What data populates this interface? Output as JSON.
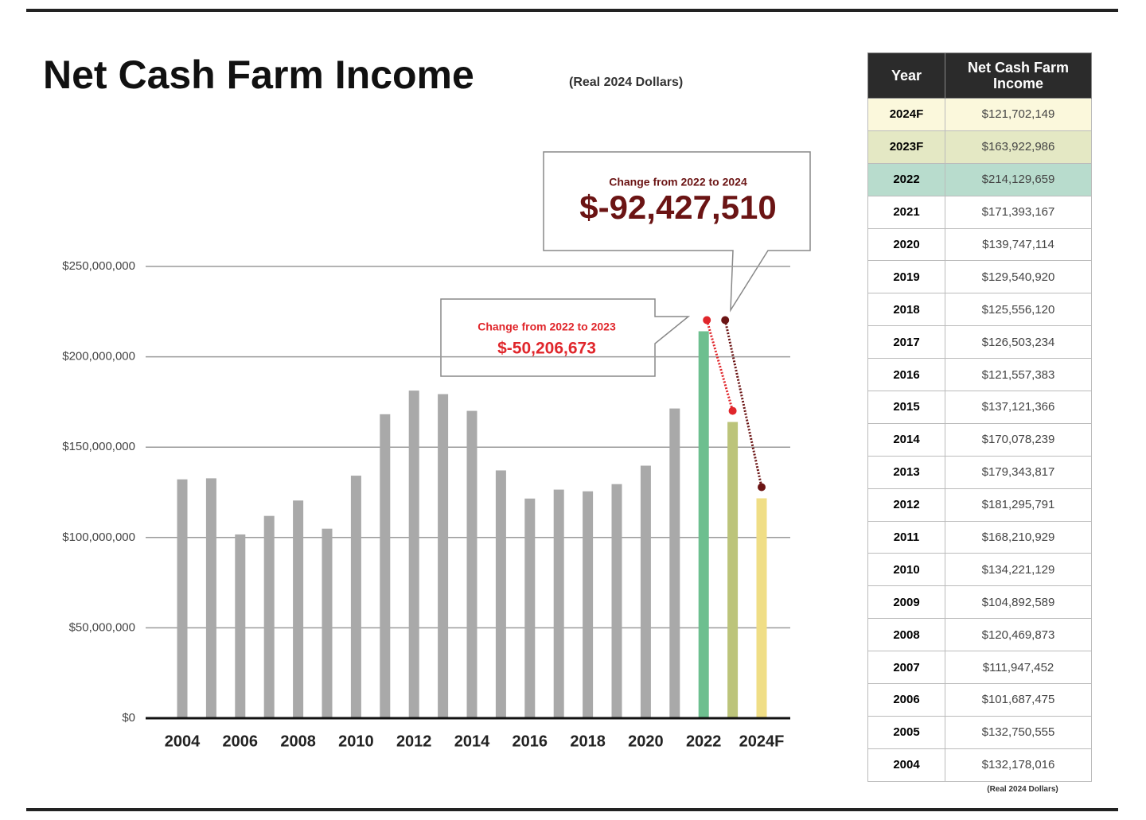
{
  "chart_data": {
    "type": "bar",
    "title": "Net Cash Farm Income",
    "subtitle": "(Real 2024 Dollars)",
    "categories": [
      "2004",
      null,
      "2006",
      null,
      "2008",
      null,
      "2010",
      null,
      "2012",
      null,
      "2014",
      null,
      "2016",
      null,
      "2018",
      null,
      "2020",
      null,
      "2022",
      null,
      "2024F"
    ],
    "values": [
      132178016,
      132750555,
      101687475,
      111947452,
      120469873,
      104892589,
      134221129,
      168210929,
      181295791,
      179343817,
      170078239,
      137121366,
      121557383,
      126503234,
      125556120,
      129540920,
      139747114,
      171393167,
      214129659,
      163922986,
      121702149
    ],
    "colors": [
      "#a9a9a9",
      "#a9a9a9",
      "#a9a9a9",
      "#a9a9a9",
      "#a9a9a9",
      "#a9a9a9",
      "#a9a9a9",
      "#a9a9a9",
      "#a9a9a9",
      "#a9a9a9",
      "#a9a9a9",
      "#a9a9a9",
      "#a9a9a9",
      "#a9a9a9",
      "#a9a9a9",
      "#a9a9a9",
      "#a9a9a9",
      "#a9a9a9",
      "#6dbf8f",
      "#bcc47a",
      "#f0de86"
    ],
    "ylim": [
      0,
      250000000
    ],
    "yticks": [
      {
        "value": 0,
        "label": "$0"
      },
      {
        "value": 50000000,
        "label": "$50,000,000"
      },
      {
        "value": 100000000,
        "label": "$100,000,000"
      },
      {
        "value": 150000000,
        "label": "$150,000,000"
      },
      {
        "value": 200000000,
        "label": "$200,000,000"
      },
      {
        "value": 250000000,
        "label": "$250,000,000"
      }
    ],
    "grid": true,
    "annotations": [
      {
        "text": "Change from 2022 to 2023",
        "value": "$-50,206,673",
        "color": "#e0262b"
      },
      {
        "text": "Change from 2022 to 2024",
        "value": "$-92,427,510",
        "color": "#6b1414"
      }
    ]
  },
  "table": {
    "header": [
      "Year",
      "Net Cash Farm Income"
    ],
    "rows": [
      [
        "2024F",
        "$121,702,149"
      ],
      [
        "2023F",
        "$163,922,986"
      ],
      [
        "2022",
        "$214,129,659"
      ],
      [
        "2021",
        "$171,393,167"
      ],
      [
        "2020",
        "$139,747,114"
      ],
      [
        "2019",
        "$129,540,920"
      ],
      [
        "2018",
        "$125,556,120"
      ],
      [
        "2017",
        "$126,503,234"
      ],
      [
        "2016",
        "$121,557,383"
      ],
      [
        "2015",
        "$137,121,366"
      ],
      [
        "2014",
        "$170,078,239"
      ],
      [
        "2013",
        "$179,343,817"
      ],
      [
        "2012",
        "$181,295,791"
      ],
      [
        "2011",
        "$168,210,929"
      ],
      [
        "2010",
        "$134,221,129"
      ],
      [
        "2009",
        "$104,892,589"
      ],
      [
        "2008",
        "$120,469,873"
      ],
      [
        "2007",
        "$111,947,452"
      ],
      [
        "2006",
        "$101,687,475"
      ],
      [
        "2005",
        "$132,750,555"
      ],
      [
        "2004",
        "$132,178,016"
      ]
    ],
    "note": "(Real 2024 Dollars)"
  }
}
